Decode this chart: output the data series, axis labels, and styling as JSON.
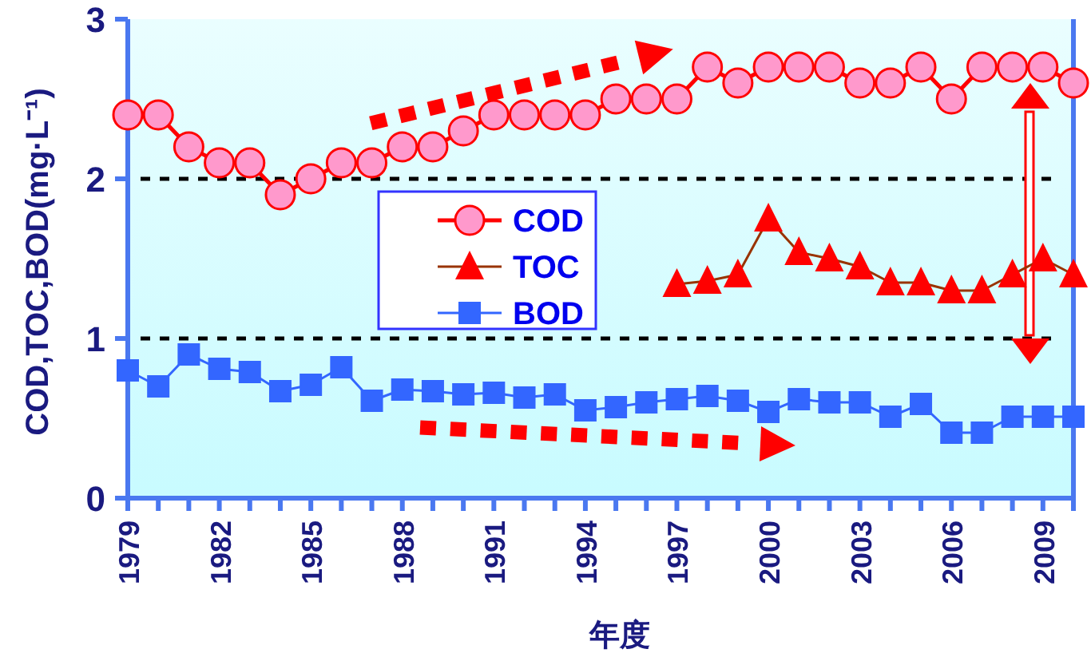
{
  "chart_data": {
    "type": "line",
    "xlabel": "年度",
    "ylabel": "COD,TOC,BOD(mg·L⁻¹)",
    "x": [
      1979,
      1980,
      1981,
      1982,
      1983,
      1984,
      1985,
      1986,
      1987,
      1988,
      1989,
      1990,
      1991,
      1992,
      1993,
      1994,
      1995,
      1996,
      1997,
      1998,
      1999,
      2000,
      2001,
      2002,
      2003,
      2004,
      2005,
      2006,
      2007,
      2008,
      2009,
      2010
    ],
    "series": [
      {
        "name": "COD",
        "color": "#ff99cc",
        "marker": "circle",
        "values": [
          2.4,
          2.4,
          2.2,
          2.1,
          2.1,
          1.9,
          2.0,
          2.1,
          2.1,
          2.2,
          2.2,
          2.3,
          2.4,
          2.4,
          2.4,
          2.4,
          2.5,
          2.5,
          2.5,
          2.7,
          2.6,
          2.7,
          2.7,
          2.7,
          2.6,
          2.6,
          2.7,
          2.5,
          2.7,
          2.7,
          2.7,
          2.6
        ]
      },
      {
        "name": "TOC",
        "color": "#ff0000",
        "marker": "triangle",
        "values": [
          null,
          null,
          null,
          null,
          null,
          null,
          null,
          null,
          null,
          null,
          null,
          null,
          null,
          null,
          null,
          null,
          null,
          null,
          1.34,
          1.36,
          1.4,
          1.75,
          1.54,
          1.5,
          1.45,
          1.35,
          1.35,
          1.3,
          1.3,
          1.4,
          1.5,
          1.4
        ]
      },
      {
        "name": "BOD",
        "color": "#3366ff",
        "marker": "square",
        "values": [
          0.8,
          0.7,
          0.9,
          0.81,
          0.79,
          0.67,
          0.71,
          0.82,
          0.61,
          0.68,
          0.67,
          0.65,
          0.66,
          0.63,
          0.65,
          0.55,
          0.57,
          0.6,
          0.62,
          0.64,
          0.61,
          0.54,
          0.62,
          0.6,
          0.6,
          0.51,
          0.59,
          0.41,
          0.41,
          0.51,
          0.51,
          0.51
        ]
      }
    ],
    "xlim": [
      1979,
      2010
    ],
    "xticks": [
      {
        "value": 1979,
        "label": "1979"
      },
      {
        "value": 1980,
        "label": null
      },
      {
        "value": 1981,
        "label": null
      },
      {
        "value": 1982,
        "label": "1982"
      },
      {
        "value": 1983,
        "label": null
      },
      {
        "value": 1984,
        "label": null
      },
      {
        "value": 1985,
        "label": "1985"
      },
      {
        "value": 1986,
        "label": null
      },
      {
        "value": 1987,
        "label": null
      },
      {
        "value": 1988,
        "label": "1988"
      },
      {
        "value": 1989,
        "label": null
      },
      {
        "value": 1990,
        "label": null
      },
      {
        "value": 1991,
        "label": "1991"
      },
      {
        "value": 1992,
        "label": null
      },
      {
        "value": 1993,
        "label": null
      },
      {
        "value": 1994,
        "label": "1994"
      },
      {
        "value": 1995,
        "label": null
      },
      {
        "value": 1996,
        "label": null
      },
      {
        "value": 1997,
        "label": "1997"
      },
      {
        "value": 1998,
        "label": null
      },
      {
        "value": 1999,
        "label": null
      },
      {
        "value": 2000,
        "label": "2000"
      },
      {
        "value": 2001,
        "label": null
      },
      {
        "value": 2002,
        "label": null
      },
      {
        "value": 2003,
        "label": "2003"
      },
      {
        "value": 2004,
        "label": null
      },
      {
        "value": 2005,
        "label": null
      },
      {
        "value": 2006,
        "label": "2006"
      },
      {
        "value": 2007,
        "label": null
      },
      {
        "value": 2008,
        "label": null
      },
      {
        "value": 2009,
        "label": "2009"
      },
      {
        "value": 2010,
        "label": null
      }
    ],
    "ylim": [
      0,
      3
    ],
    "yticks": [
      0,
      1,
      2,
      3
    ],
    "grid": "y",
    "legend": "center left"
  }
}
